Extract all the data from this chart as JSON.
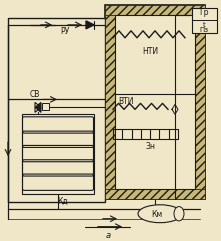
{
  "bg_color": "#f0e6c8",
  "line_color": "#1a1a1a",
  "hatch_fc": "#c8b878",
  "label_RU": "РУ",
  "label_NTI": "НТИ",
  "label_VTI": "ВТИ",
  "label_ZN": "Зн",
  "label_SV": "СВ",
  "label_KD": "Кд",
  "label_KM": "Км",
  "label_GR": "Гр",
  "label_t": "t",
  "label_PZ": "Пз",
  "label_a": "а",
  "fig_width": 2.21,
  "fig_height": 2.41,
  "dpi": 100
}
